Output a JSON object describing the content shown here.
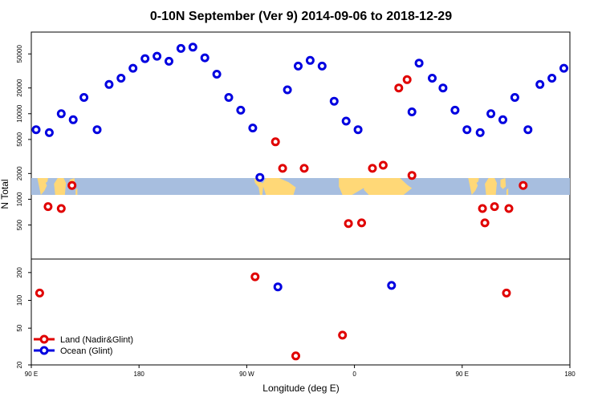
{
  "chart_data": {
    "type": "scatter",
    "title": "0-10N September (Ver 9)   2014-09-06 to 2018-12-29",
    "xlabel": "Longitude (deg E)",
    "ylabel": "N Total",
    "x_ticks": [
      {
        "value": 90,
        "label": "90 E"
      },
      {
        "value": 180,
        "label": "180"
      },
      {
        "value": 270,
        "label": "90 W"
      },
      {
        "value": 360,
        "label": "0"
      },
      {
        "value": 450,
        "label": "90 E"
      },
      {
        "value": 540,
        "label": "180"
      }
    ],
    "xlim": [
      90,
      540
    ],
    "top_panel": {
      "yscale": "log",
      "ylim": [
        200,
        90000
      ],
      "y_ticks": [
        500,
        1000,
        2000,
        5000,
        10000,
        20000,
        50000
      ]
    },
    "bottom_panel": {
      "yscale": "log",
      "ylim": [
        20,
        280
      ],
      "y_ticks": [
        20,
        50,
        100,
        200
      ]
    },
    "map_strip_lat": "0-10N",
    "colors": {
      "land": "#e00000",
      "ocean": "#0000e0",
      "map_ocean": "#a7bedf",
      "map_land": "#ffd877"
    },
    "series": [
      {
        "name": "Land (Nadir&Glint)",
        "color": "#e00000",
        "points": [
          [
            97,
            120
          ],
          [
            104,
            820
          ],
          [
            115,
            780
          ],
          [
            124,
            1450
          ],
          [
            277,
            180
          ],
          [
            294,
            4700
          ],
          [
            300,
            2300
          ],
          [
            318,
            2300
          ],
          [
            311,
            25
          ],
          [
            350,
            42
          ],
          [
            355,
            520
          ],
          [
            366,
            530
          ],
          [
            375,
            2300
          ],
          [
            384,
            2500
          ],
          [
            397,
            20000
          ],
          [
            404,
            25000
          ],
          [
            408,
            1900
          ],
          [
            467,
            780
          ],
          [
            469,
            530
          ],
          [
            487,
            120
          ],
          [
            477,
            820
          ],
          [
            489,
            780
          ],
          [
            501,
            1450
          ]
        ]
      },
      {
        "name": "Ocean (Glint)",
        "color": "#0000e0",
        "points": [
          [
            94,
            6500
          ],
          [
            105,
            6000
          ],
          [
            115,
            10000
          ],
          [
            125,
            8500
          ],
          [
            134,
            15500
          ],
          [
            145,
            6500
          ],
          [
            155,
            22000
          ],
          [
            165,
            26000
          ],
          [
            175,
            34000
          ],
          [
            185,
            44000
          ],
          [
            195,
            47000
          ],
          [
            205,
            41000
          ],
          [
            215,
            58000
          ],
          [
            225,
            60000
          ],
          [
            235,
            45000
          ],
          [
            245,
            29000
          ],
          [
            255,
            15500
          ],
          [
            265,
            11000
          ],
          [
            275,
            6800
          ],
          [
            281,
            1800
          ],
          [
            296,
            140
          ],
          [
            304,
            19000
          ],
          [
            313,
            36000
          ],
          [
            323,
            42000
          ],
          [
            333,
            36000
          ],
          [
            343,
            14000
          ],
          [
            353,
            8200
          ],
          [
            363,
            6500
          ],
          [
            391,
            145
          ],
          [
            408,
            10500
          ],
          [
            414,
            39000
          ],
          [
            425,
            26000
          ],
          [
            434,
            20000
          ],
          [
            444,
            11000
          ],
          [
            454,
            6500
          ],
          [
            465,
            6000
          ],
          [
            474,
            10000
          ],
          [
            484,
            8500
          ],
          [
            494,
            15500
          ],
          [
            505,
            6500
          ],
          [
            515,
            22000
          ],
          [
            525,
            26000
          ],
          [
            535,
            34000
          ]
        ]
      }
    ]
  }
}
